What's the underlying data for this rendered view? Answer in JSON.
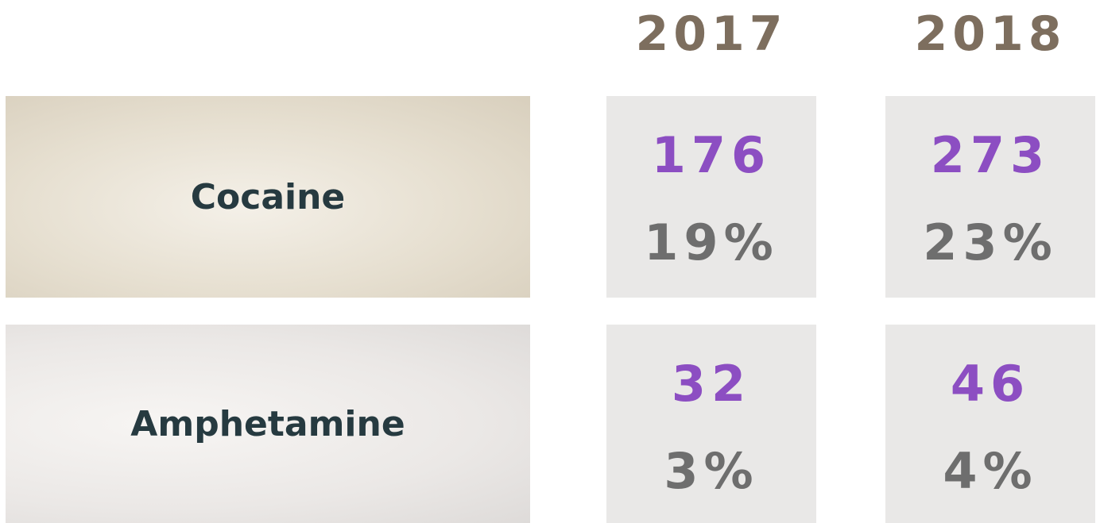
{
  "table": {
    "columns": [
      "2017",
      "2018"
    ],
    "rows": [
      {
        "label": "Cocaine",
        "cells": [
          {
            "count": "176",
            "percent": "19%"
          },
          {
            "count": "273",
            "percent": "23%"
          }
        ]
      },
      {
        "label": "Amphetamine",
        "cells": [
          {
            "count": "32",
            "percent": "3%"
          },
          {
            "count": "46",
            "percent": "4%"
          }
        ]
      }
    ]
  }
}
